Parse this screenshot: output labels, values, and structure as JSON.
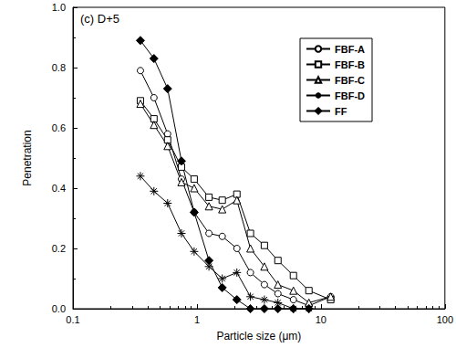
{
  "chart_data": {
    "type": "line",
    "annotation": "(c) D+5",
    "x_label": "Particle size (μm)",
    "y_label": "Penetration",
    "log": "x",
    "grid": false,
    "legend": "upper right",
    "xlim": [
      0.1,
      100
    ],
    "xticks": [
      0.1,
      1,
      10,
      100
    ],
    "ylim": [
      0,
      1
    ],
    "yticks": [
      {
        "value": 0,
        "label": "0.0"
      },
      0.2,
      0.4,
      0.6,
      0.8,
      {
        "value": 1,
        "label": "1.0"
      }
    ],
    "x": [
      0.35,
      0.45,
      0.58,
      0.75,
      0.95,
      1.25,
      1.6,
      2.1,
      2.7,
      3.5,
      4.5,
      6,
      8,
      12
    ],
    "series": [
      {
        "name": "FBF-A",
        "color": "#000000",
        "marker": "circle",
        "values": [
          0.79,
          0.7,
          0.58,
          0.43,
          0.32,
          0.25,
          0.24,
          0.2,
          0.12,
          0.08,
          0.05,
          0.03,
          0.01,
          0.04
        ]
      },
      {
        "name": "FBF-B",
        "color": "#000000",
        "marker": "square",
        "values": [
          0.69,
          0.63,
          0.56,
          0.47,
          0.43,
          0.37,
          0.36,
          0.38,
          0.25,
          0.21,
          0.16,
          0.11,
          0.06,
          0.03
        ]
      },
      {
        "name": "FBF-C",
        "color": "#000000",
        "marker": "triangle",
        "values": [
          0.68,
          0.61,
          0.54,
          0.42,
          0.4,
          0.34,
          0.33,
          0.36,
          0.2,
          0.14,
          0.08,
          0.06,
          0.02,
          0.04
        ]
      },
      {
        "name": "FBF-D",
        "color": "#000000",
        "marker": "asterisk",
        "values": [
          0.44,
          0.39,
          0.35,
          0.25,
          0.19,
          0.14,
          0.1,
          0.12,
          0.04,
          0.03,
          0.02,
          0.0,
          0.0,
          null
        ]
      },
      {
        "name": "FF",
        "color": "#000000",
        "marker": "filled_diamond",
        "values": [
          0.89,
          0.83,
          0.73,
          0.49,
          0.32,
          0.16,
          0.07,
          0.03,
          0.0,
          0.0,
          0.0,
          0.0,
          0.0,
          null
        ]
      }
    ]
  }
}
